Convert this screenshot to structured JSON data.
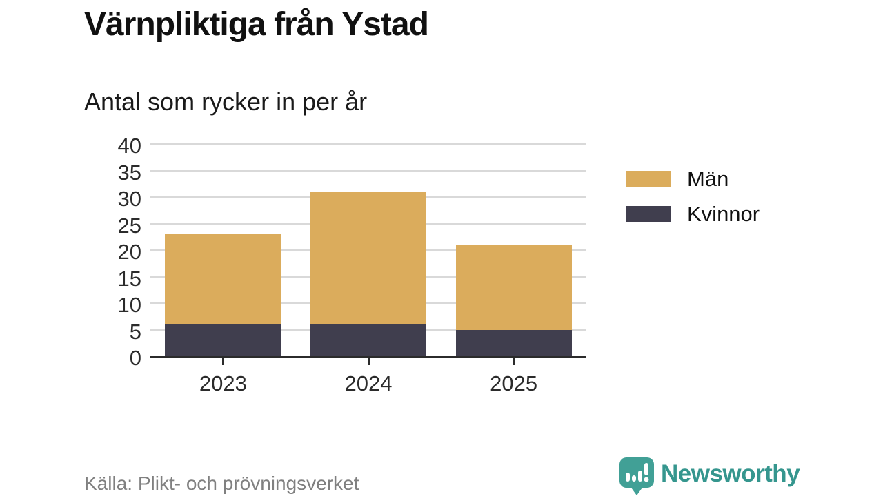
{
  "header": {
    "title": "Värnpliktiga från Ystad",
    "subtitle": "Antal som rycker in per år"
  },
  "chart_data": {
    "type": "bar",
    "stacked": true,
    "title": "Värnpliktiga från Ystad",
    "subtitle": "Antal som rycker in per år",
    "categories": [
      "2023",
      "2024",
      "2025"
    ],
    "series": [
      {
        "name": "Män",
        "color": "#dbac5c",
        "values": [
          17,
          25,
          16
        ]
      },
      {
        "name": "Kvinnor",
        "color": "#403e4e",
        "values": [
          6,
          6,
          5
        ]
      }
    ],
    "stack_bottom_to_top": [
      "Kvinnor",
      "Män"
    ],
    "totals": [
      23,
      31,
      21
    ],
    "xlabel": "",
    "ylabel": "",
    "ylim": [
      0,
      40
    ],
    "ytick_step": 5,
    "grid": true,
    "gridline_color": "#d9d9d9",
    "axis_color": "#2b2b2b",
    "legend_position": "right"
  },
  "footer": {
    "source": "Källa: Plikt- och prövningsverket",
    "brand_name": "Newsworthy",
    "brand_color": "#35968e",
    "brand_icon_color": "#41a096"
  }
}
